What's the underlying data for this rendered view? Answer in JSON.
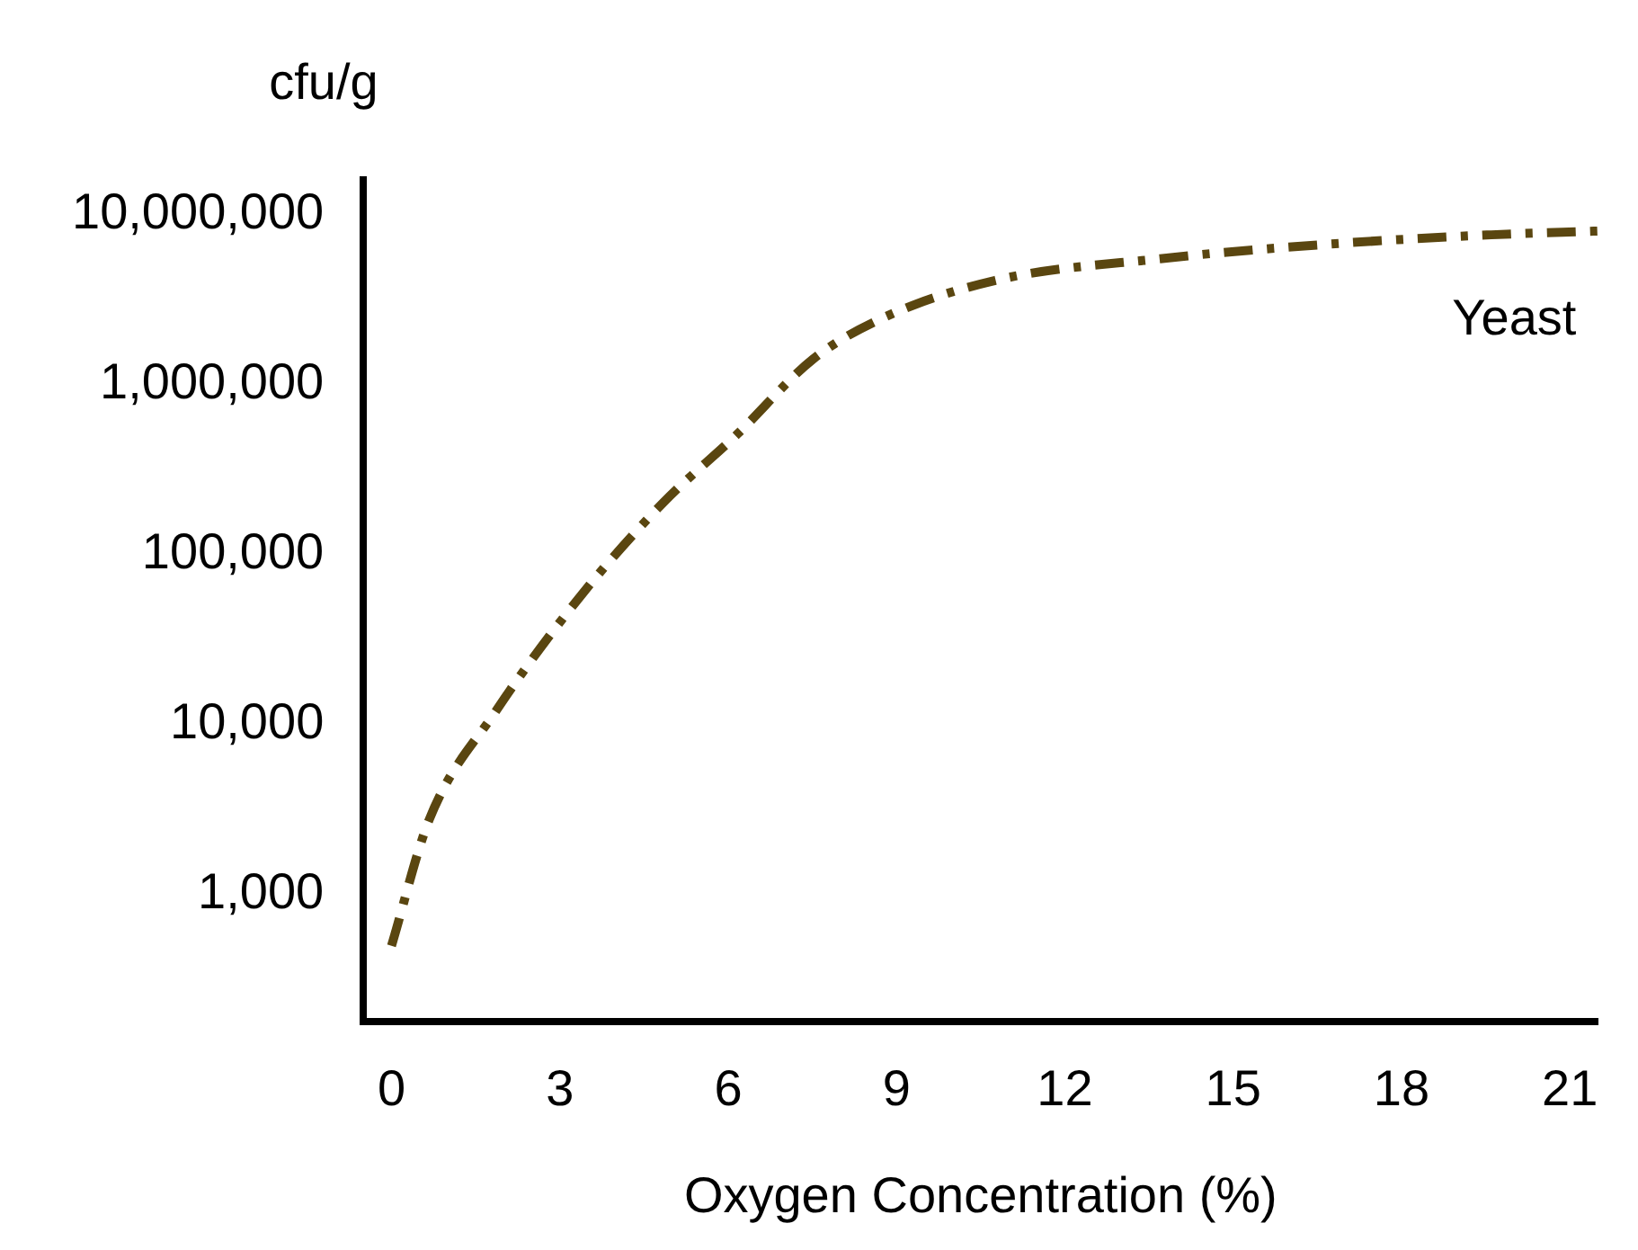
{
  "chart_data": {
    "type": "line",
    "xlabel": "Oxygen Concentration (%)",
    "ylabel": "cfu/g",
    "log": "y",
    "xlim": [
      -0.5,
      21.5
    ],
    "xticks": [
      0,
      3,
      6,
      9,
      12,
      15,
      18,
      21
    ],
    "ylim": [
      180,
      16000000
    ],
    "yticks": [
      {
        "value": 1000,
        "label": "1,000"
      },
      {
        "value": 10000,
        "label": "10,000"
      },
      {
        "value": 100000,
        "label": "100,000"
      },
      {
        "value": 1000000,
        "label": "1,000,000"
      },
      {
        "value": 10000000,
        "label": "10,000,000"
      }
    ],
    "grid": false,
    "legend": false,
    "marker": "none",
    "line_style": "dashed",
    "series": [
      {
        "name": "Yeast",
        "color": "#5a4610",
        "x": [
          0,
          0.67,
          1.86,
          3.33,
          4.83,
          6.16,
          7.5,
          8.68,
          10.76,
          13.7,
          16.7,
          19.6,
          21.5
        ],
        "values": [
          500,
          2750,
          12000,
          55000,
          200000,
          510000,
          1400000,
          2400000,
          4100000,
          5500000,
          6700000,
          7600000,
          8000000
        ]
      }
    ]
  }
}
